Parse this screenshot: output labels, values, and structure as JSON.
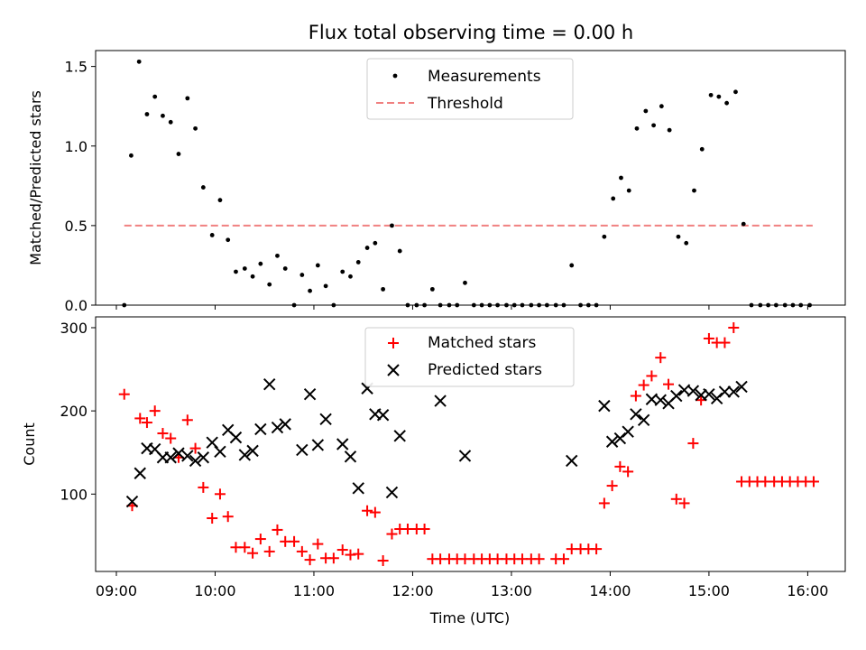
{
  "chart_data": [
    {
      "type": "scatter",
      "title": "Flux total observing time = 0.00 h",
      "xlabel": "",
      "ylabel": "Matched/Predicted stars",
      "xlim": [
        8.79,
        16.38
      ],
      "ylim": [
        0,
        1.6
      ],
      "yticks": [
        0.0,
        0.5,
        1.0,
        1.5
      ],
      "ytick_labels": [
        "0.0",
        "0.5",
        "1.0",
        "1.5"
      ],
      "legend": {
        "position": "top-center",
        "entries": [
          "Measurements",
          "Threshold"
        ]
      },
      "threshold": {
        "name": "Threshold",
        "value": 0.5,
        "x_start": 9.08,
        "x_end": 16.05,
        "color": "#f08080"
      },
      "series": [
        {
          "name": "Measurements",
          "marker": "dot",
          "color": "#000000",
          "points": [
            [
              9.08,
              0.0
            ],
            [
              9.15,
              0.94
            ],
            [
              9.23,
              1.53
            ],
            [
              9.31,
              1.2
            ],
            [
              9.39,
              1.31
            ],
            [
              9.47,
              1.19
            ],
            [
              9.55,
              1.15
            ],
            [
              9.63,
              0.95
            ],
            [
              9.72,
              1.3
            ],
            [
              9.8,
              1.11
            ],
            [
              9.88,
              0.74
            ],
            [
              9.97,
              0.44
            ],
            [
              10.05,
              0.66
            ],
            [
              10.13,
              0.41
            ],
            [
              10.21,
              0.21
            ],
            [
              10.3,
              0.23
            ],
            [
              10.38,
              0.18
            ],
            [
              10.46,
              0.26
            ],
            [
              10.55,
              0.13
            ],
            [
              10.63,
              0.31
            ],
            [
              10.71,
              0.23
            ],
            [
              10.8,
              0.0
            ],
            [
              10.88,
              0.19
            ],
            [
              10.96,
              0.09
            ],
            [
              11.04,
              0.25
            ],
            [
              11.12,
              0.12
            ],
            [
              11.2,
              0.0
            ],
            [
              11.29,
              0.21
            ],
            [
              11.37,
              0.18
            ],
            [
              11.45,
              0.27
            ],
            [
              11.54,
              0.36
            ],
            [
              11.62,
              0.39
            ],
            [
              11.7,
              0.1
            ],
            [
              11.79,
              0.5
            ],
            [
              11.87,
              0.34
            ],
            [
              11.95,
              0.0
            ],
            [
              12.04,
              0.0
            ],
            [
              12.12,
              0.0
            ],
            [
              12.2,
              0.1
            ],
            [
              12.28,
              0.0
            ],
            [
              12.37,
              0.0
            ],
            [
              12.45,
              0.0
            ],
            [
              12.53,
              0.14
            ],
            [
              12.62,
              0.0
            ],
            [
              12.7,
              0.0
            ],
            [
              12.78,
              0.0
            ],
            [
              12.86,
              0.0
            ],
            [
              12.95,
              0.0
            ],
            [
              13.03,
              0.0
            ],
            [
              13.11,
              0.0
            ],
            [
              13.2,
              0.0
            ],
            [
              13.28,
              0.0
            ],
            [
              13.36,
              0.0
            ],
            [
              13.45,
              0.0
            ],
            [
              13.53,
              0.0
            ],
            [
              13.61,
              0.25
            ],
            [
              13.7,
              0.0
            ],
            [
              13.78,
              0.0
            ],
            [
              13.86,
              0.0
            ],
            [
              13.94,
              0.43
            ],
            [
              14.03,
              0.67
            ],
            [
              14.11,
              0.8
            ],
            [
              14.19,
              0.72
            ],
            [
              14.27,
              1.11
            ],
            [
              14.36,
              1.22
            ],
            [
              14.44,
              1.13
            ],
            [
              14.52,
              1.25
            ],
            [
              14.6,
              1.1
            ],
            [
              14.69,
              0.43
            ],
            [
              14.77,
              0.39
            ],
            [
              14.85,
              0.72
            ],
            [
              14.93,
              0.98
            ],
            [
              15.02,
              1.32
            ],
            [
              15.1,
              1.31
            ],
            [
              15.18,
              1.27
            ],
            [
              15.27,
              1.34
            ],
            [
              15.35,
              0.51
            ],
            [
              15.43,
              0.0
            ],
            [
              15.52,
              0.0
            ],
            [
              15.6,
              0.0
            ],
            [
              15.68,
              0.0
            ],
            [
              15.77,
              0.0
            ],
            [
              15.85,
              0.0
            ],
            [
              15.93,
              0.0
            ],
            [
              16.02,
              0.0
            ]
          ]
        }
      ]
    },
    {
      "type": "scatter",
      "title": "",
      "xlabel": "Time (UTC)",
      "ylabel": "Count",
      "xlim": [
        8.79,
        16.38
      ],
      "ylim": [
        7,
        313
      ],
      "xticks": [
        9,
        10,
        11,
        12,
        13,
        14,
        15,
        16
      ],
      "xtick_labels": [
        "09:00",
        "10:00",
        "11:00",
        "12:00",
        "13:00",
        "14:00",
        "15:00",
        "16:00"
      ],
      "yticks": [
        100,
        200,
        300
      ],
      "ytick_labels": [
        "100",
        "200",
        "300"
      ],
      "legend": {
        "position": "top-center",
        "entries": [
          "Matched stars",
          "Predicted stars"
        ]
      },
      "series": [
        {
          "name": "Matched stars",
          "marker": "plus",
          "color": "#ff0000",
          "points": [
            [
              9.08,
              220
            ],
            [
              9.16,
              86
            ],
            [
              9.24,
              191
            ],
            [
              9.31,
              186
            ],
            [
              9.39,
              200
            ],
            [
              9.47,
              173
            ],
            [
              9.55,
              167
            ],
            [
              9.63,
              144
            ],
            [
              9.72,
              189
            ],
            [
              9.8,
              155
            ],
            [
              9.88,
              108
            ],
            [
              9.97,
              71
            ],
            [
              10.05,
              100
            ],
            [
              10.13,
              73
            ],
            [
              10.21,
              36
            ],
            [
              10.3,
              36
            ],
            [
              10.38,
              29
            ],
            [
              10.46,
              46
            ],
            [
              10.55,
              31
            ],
            [
              10.63,
              57
            ],
            [
              10.71,
              43
            ],
            [
              10.8,
              43
            ],
            [
              10.88,
              31
            ],
            [
              10.96,
              21
            ],
            [
              11.04,
              40
            ],
            [
              11.12,
              23
            ],
            [
              11.2,
              23
            ],
            [
              11.29,
              33
            ],
            [
              11.37,
              27
            ],
            [
              11.45,
              28
            ],
            [
              11.54,
              80
            ],
            [
              11.62,
              78
            ],
            [
              11.7,
              20
            ],
            [
              11.79,
              52
            ],
            [
              11.87,
              58
            ],
            [
              11.95,
              58
            ],
            [
              12.04,
              58
            ],
            [
              12.12,
              58
            ],
            [
              12.2,
              22
            ],
            [
              12.28,
              22
            ],
            [
              12.37,
              22
            ],
            [
              12.45,
              22
            ],
            [
              12.53,
              22
            ],
            [
              12.62,
              22
            ],
            [
              12.7,
              22
            ],
            [
              12.78,
              22
            ],
            [
              12.86,
              22
            ],
            [
              12.95,
              22
            ],
            [
              13.03,
              22
            ],
            [
              13.11,
              22
            ],
            [
              13.2,
              22
            ],
            [
              13.28,
              22
            ],
            [
              13.45,
              22
            ],
            [
              13.53,
              22
            ],
            [
              13.61,
              34
            ],
            [
              13.7,
              34
            ],
            [
              13.78,
              34
            ],
            [
              13.86,
              34
            ],
            [
              13.94,
              89
            ],
            [
              14.02,
              110
            ],
            [
              14.1,
              133
            ],
            [
              14.18,
              127
            ],
            [
              14.26,
              218
            ],
            [
              14.34,
              231
            ],
            [
              14.42,
              242
            ],
            [
              14.51,
              264
            ],
            [
              14.59,
              232
            ],
            [
              14.67,
              94
            ],
            [
              14.75,
              89
            ],
            [
              14.84,
              161
            ],
            [
              14.92,
              213
            ],
            [
              15.0,
              287
            ],
            [
              15.08,
              282
            ],
            [
              15.16,
              282
            ],
            [
              15.25,
              300
            ],
            [
              15.33,
              115
            ],
            [
              15.41,
              115
            ],
            [
              15.49,
              115
            ],
            [
              15.57,
              115
            ],
            [
              15.66,
              115
            ],
            [
              15.74,
              115
            ],
            [
              15.82,
              115
            ],
            [
              15.9,
              115
            ],
            [
              15.98,
              115
            ],
            [
              16.06,
              115
            ]
          ]
        },
        {
          "name": "Predicted stars",
          "marker": "x",
          "color": "#000000",
          "points": [
            [
              9.16,
              91
            ],
            [
              9.24,
              125
            ],
            [
              9.31,
              155
            ],
            [
              9.39,
              154
            ],
            [
              9.47,
              144
            ],
            [
              9.55,
              144
            ],
            [
              9.63,
              149
            ],
            [
              9.72,
              146
            ],
            [
              9.8,
              140
            ],
            [
              9.88,
              144
            ],
            [
              9.97,
              162
            ],
            [
              10.05,
              151
            ],
            [
              10.13,
              177
            ],
            [
              10.21,
              168
            ],
            [
              10.3,
              147
            ],
            [
              10.38,
              152
            ],
            [
              10.46,
              178
            ],
            [
              10.55,
              232
            ],
            [
              10.63,
              180
            ],
            [
              10.71,
              184
            ],
            [
              10.88,
              153
            ],
            [
              10.96,
              220
            ],
            [
              11.04,
              159
            ],
            [
              11.12,
              190
            ],
            [
              11.29,
              160
            ],
            [
              11.37,
              145
            ],
            [
              11.45,
              107
            ],
            [
              11.54,
              227
            ],
            [
              11.62,
              196
            ],
            [
              11.7,
              195
            ],
            [
              11.79,
              102
            ],
            [
              11.87,
              170
            ],
            [
              12.28,
              212
            ],
            [
              12.53,
              146
            ],
            [
              13.61,
              140
            ],
            [
              13.94,
              206
            ],
            [
              14.02,
              163
            ],
            [
              14.1,
              167
            ],
            [
              14.18,
              175
            ],
            [
              14.26,
              196
            ],
            [
              14.34,
              189
            ],
            [
              14.42,
              214
            ],
            [
              14.51,
              213
            ],
            [
              14.59,
              209
            ],
            [
              14.67,
              218
            ],
            [
              14.75,
              225
            ],
            [
              14.84,
              224
            ],
            [
              14.92,
              219
            ],
            [
              15.0,
              220
            ],
            [
              15.08,
              215
            ],
            [
              15.16,
              223
            ],
            [
              15.25,
              223
            ],
            [
              15.33,
              229
            ]
          ]
        }
      ]
    }
  ]
}
